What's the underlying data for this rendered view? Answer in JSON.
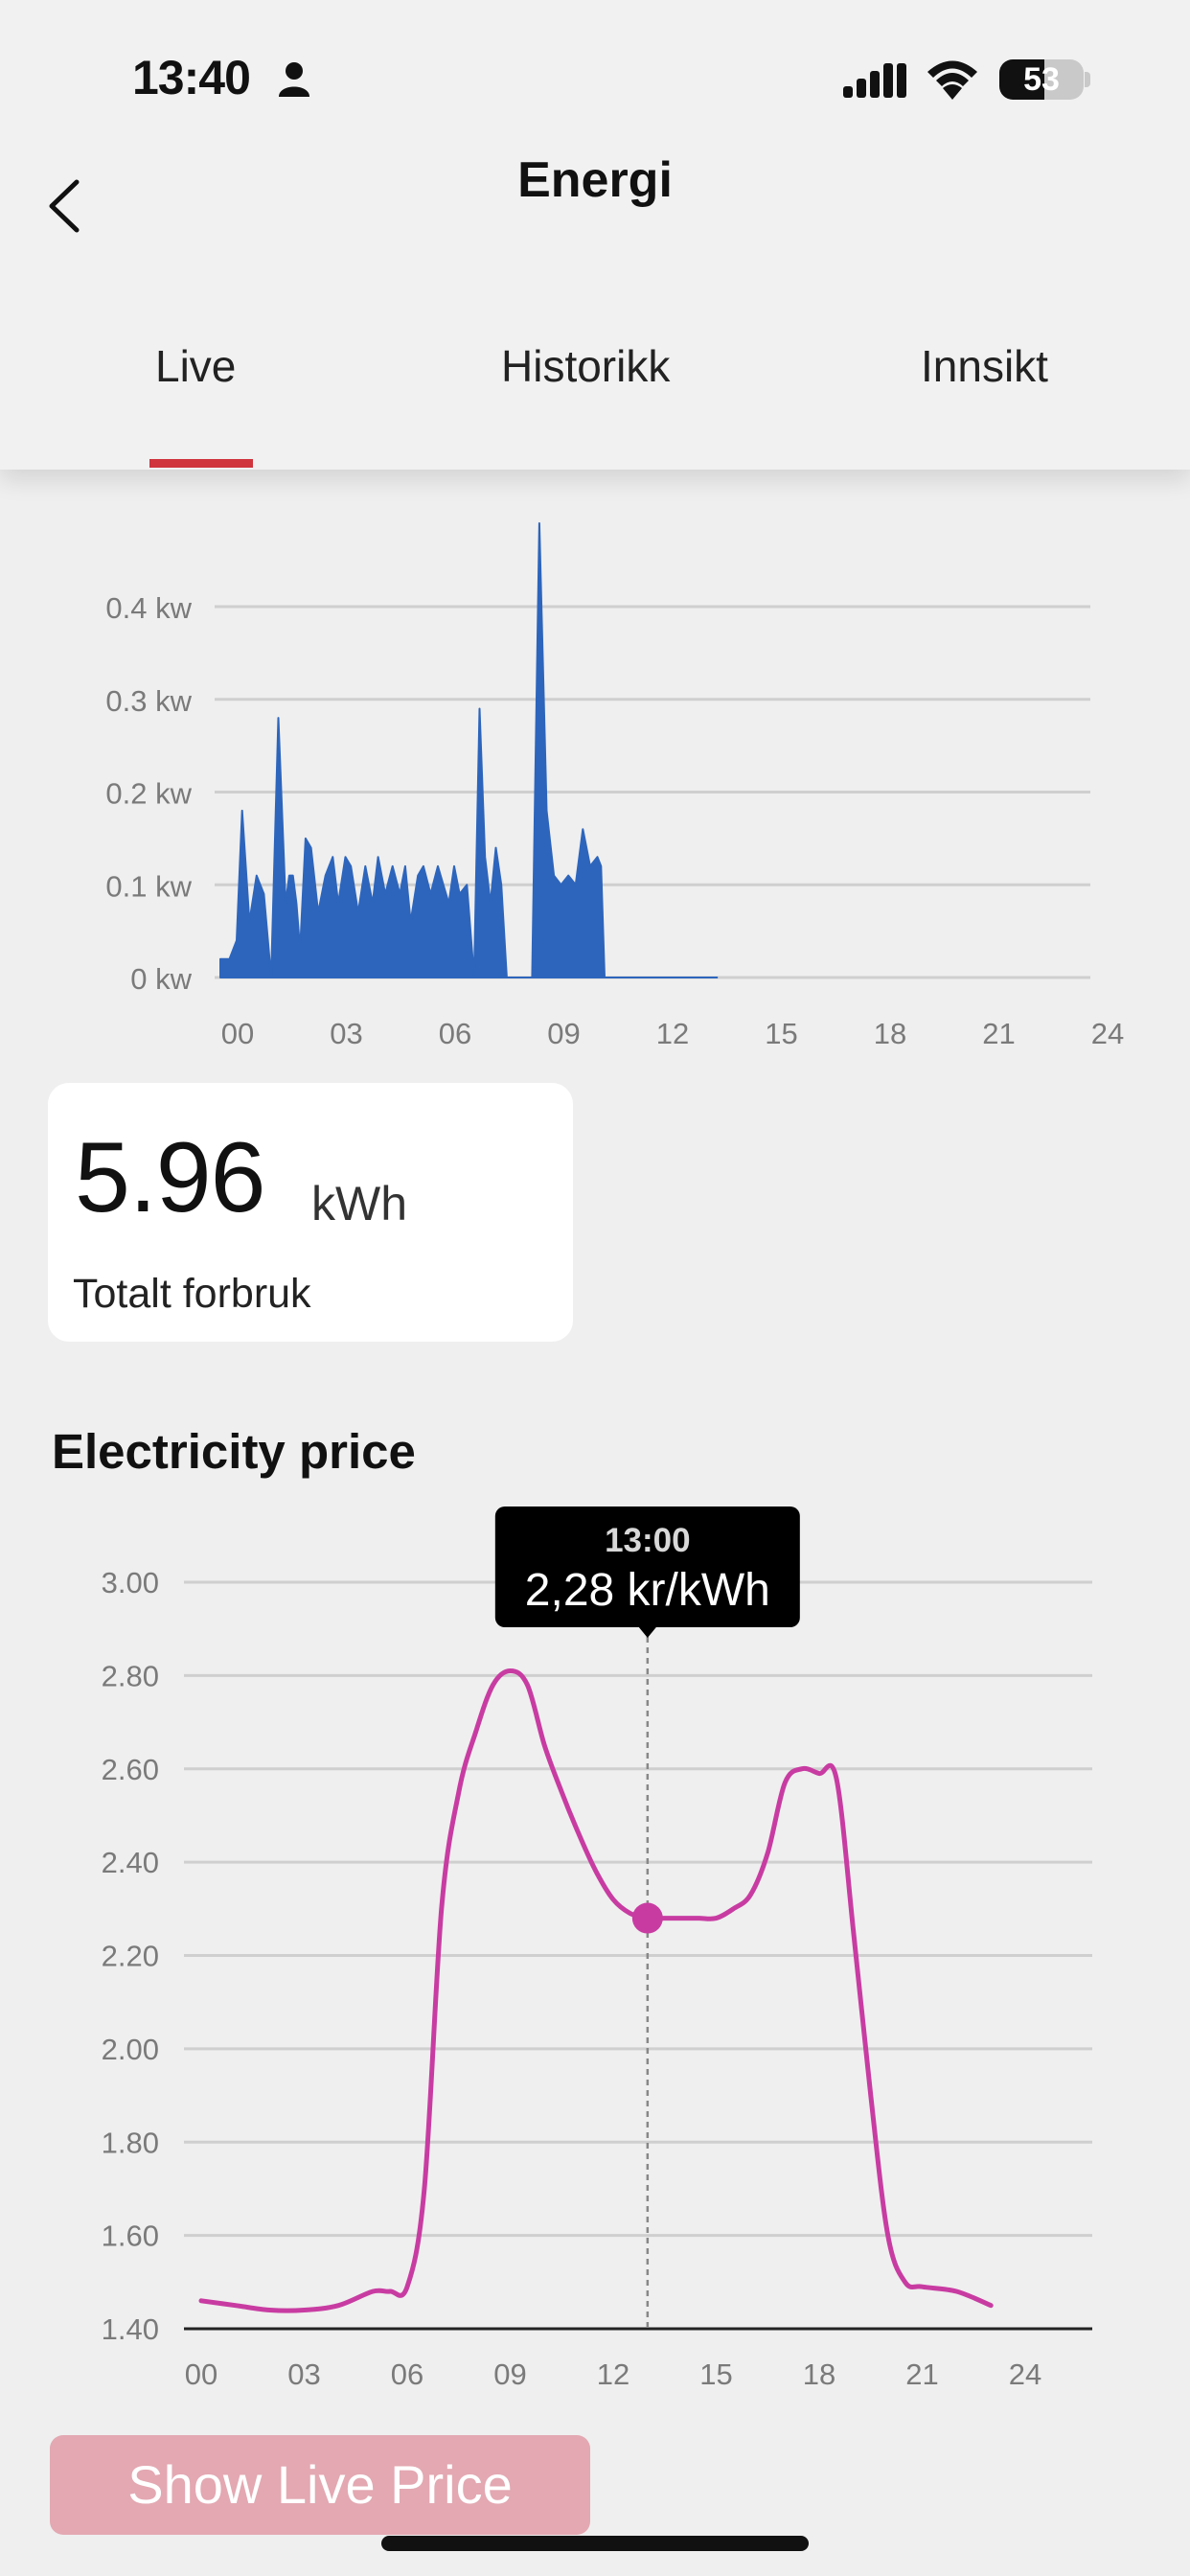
{
  "status_bar": {
    "time": "13:40",
    "battery": "53",
    "battery_level": 0.53
  },
  "header": {
    "title": "Energi",
    "back_icon": "chevron-left-icon"
  },
  "tabs": [
    {
      "label": "Live",
      "selected": true
    },
    {
      "label": "Historikk",
      "selected": false
    },
    {
      "label": "Innsikt",
      "selected": false
    }
  ],
  "colors": {
    "accent": "#d0343d",
    "usage_fill": "#2d65bc",
    "price_line": "#c83ca2",
    "button": "#e3a8b2"
  },
  "usage_chart": {
    "chart_data": {
      "type": "area",
      "y_tick_labels": [
        "0 kw",
        "0.1 kw",
        "0.2 kw",
        "0.3 kw",
        "0.4 kw"
      ],
      "y_ticks": [
        0,
        0.1,
        0.2,
        0.3,
        0.4
      ],
      "x_tick_labels": [
        "00",
        "03",
        "06",
        "09",
        "12",
        "15",
        "18",
        "21",
        "24"
      ],
      "x_ticks": [
        0,
        3,
        6,
        9,
        12,
        15,
        18,
        21,
        24
      ],
      "xlim": [
        0,
        24
      ],
      "ylim": [
        0,
        0.49
      ],
      "grid": true,
      "x": [
        0,
        0.25,
        0.45,
        0.6,
        0.8,
        1.0,
        1.2,
        1.4,
        1.6,
        1.8,
        1.9,
        2.0,
        2.1,
        2.2,
        2.35,
        2.5,
        2.7,
        2.9,
        3.1,
        3.25,
        3.45,
        3.6,
        3.8,
        4.0,
        4.2,
        4.35,
        4.55,
        4.75,
        4.95,
        5.1,
        5.25,
        5.45,
        5.6,
        5.8,
        6.0,
        6.15,
        6.3,
        6.45,
        6.6,
        6.8,
        7.0,
        7.15,
        7.3,
        7.45,
        7.6,
        7.75,
        7.9,
        8.05,
        8.2,
        8.35,
        8.5,
        8.6,
        8.8,
        9.0,
        9.2,
        9.4,
        9.6,
        9.8,
        10.0,
        10.2,
        10.4,
        10.5,
        10.6,
        10.75,
        10.85,
        11.0,
        11.2,
        11.4,
        11.6,
        11.8,
        12.0,
        12.2,
        12.4,
        12.55,
        12.7,
        12.85,
        13.0,
        13.15,
        13.3,
        13.7
      ],
      "y": [
        0.02,
        0.02,
        0.04,
        0.18,
        0.06,
        0.11,
        0.09,
        0.0,
        0.28,
        0.08,
        0.11,
        0.11,
        0.08,
        0.03,
        0.15,
        0.14,
        0.07,
        0.11,
        0.13,
        0.08,
        0.13,
        0.12,
        0.07,
        0.12,
        0.08,
        0.13,
        0.09,
        0.12,
        0.09,
        0.12,
        0.06,
        0.11,
        0.12,
        0.09,
        0.12,
        0.1,
        0.08,
        0.12,
        0.09,
        0.1,
        0.0,
        0.29,
        0.13,
        0.08,
        0.14,
        0.1,
        0.0,
        0.0,
        0.0,
        0.0,
        0.0,
        0.0,
        0.49,
        0.18,
        0.11,
        0.1,
        0.11,
        0.1,
        0.16,
        0.12,
        0.13,
        0.12,
        0.0,
        0.0,
        0.0,
        0.0,
        0.0,
        0.0,
        0.0,
        0.0,
        0.0,
        0.0,
        0.0,
        0.0,
        0.0,
        0.0,
        0.0,
        0.0,
        0.0,
        0.0
      ]
    }
  },
  "total": {
    "value": "5.96",
    "unit": "kWh",
    "label": "Totalt forbruk"
  },
  "price_section": {
    "title": "Electricity price"
  },
  "price_chart": {
    "chart_data": {
      "type": "line",
      "y_tick_labels": [
        "1.40",
        "1.60",
        "1.80",
        "2.00",
        "2.20",
        "2.40",
        "2.60",
        "2.80",
        "3.00"
      ],
      "y_ticks": [
        1.4,
        1.6,
        1.8,
        2.0,
        2.2,
        2.4,
        2.6,
        2.8,
        3.0
      ],
      "x_tick_labels": [
        "00",
        "03",
        "06",
        "09",
        "12",
        "15",
        "18",
        "21",
        "24"
      ],
      "x_ticks": [
        0,
        3,
        6,
        9,
        12,
        15,
        18,
        21,
        24
      ],
      "xlim": [
        0,
        24
      ],
      "ylim": [
        1.4,
        3.0
      ],
      "grid": true,
      "x": [
        0,
        1,
        2,
        3,
        4,
        5,
        5.5,
        6,
        6.5,
        7,
        7.5,
        8,
        8.5,
        9,
        9.5,
        10,
        10.5,
        11,
        11.5,
        12,
        12.5,
        13,
        13.5,
        14,
        14.5,
        15,
        15.5,
        16,
        16.5,
        17,
        17.5,
        18,
        18.5,
        19,
        19.5,
        20,
        20.5,
        21,
        22,
        23
      ],
      "y": [
        1.46,
        1.45,
        1.44,
        1.44,
        1.45,
        1.48,
        1.48,
        1.49,
        1.7,
        2.3,
        2.55,
        2.68,
        2.78,
        2.81,
        2.78,
        2.65,
        2.55,
        2.46,
        2.38,
        2.32,
        2.29,
        2.28,
        2.28,
        2.28,
        2.28,
        2.28,
        2.3,
        2.33,
        2.42,
        2.57,
        2.6,
        2.59,
        2.58,
        2.25,
        1.9,
        1.6,
        1.5,
        1.49,
        1.48,
        1.45
      ],
      "highlight": {
        "time": "13:00",
        "label": "2,28 kr/kWh",
        "x": 13,
        "y": 2.28
      }
    }
  },
  "live_button": {
    "label": "Show Live Price"
  }
}
